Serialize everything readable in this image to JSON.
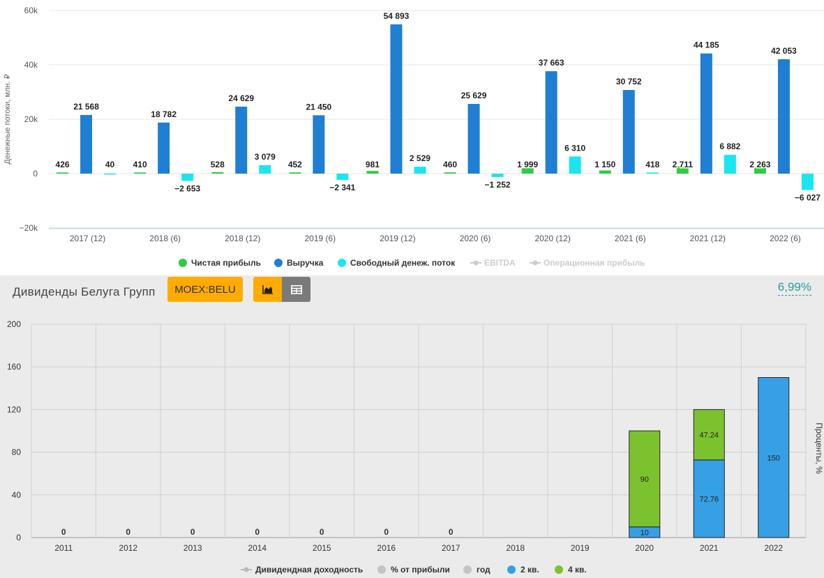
{
  "flow_panel": {
    "legend": [
      {
        "label": "Чистая прибыль",
        "color": "#2ecc40",
        "marker": "dot",
        "enabled": true
      },
      {
        "label": "Выручка",
        "color": "#1f7fd3",
        "marker": "dot",
        "enabled": true
      },
      {
        "label": "Свободный денеж. поток",
        "color": "#19e6f0",
        "marker": "dot",
        "enabled": true
      },
      {
        "label": "EBITDA",
        "color": "#cccccc",
        "marker": "line-dot",
        "enabled": false
      },
      {
        "label": "Операционная прибыль",
        "color": "#cccccc",
        "marker": "line-dot",
        "enabled": false
      }
    ]
  },
  "dividend_panel": {
    "title": "Дивиденды Белуга Групп",
    "ticker_button": "MOEX:BELU",
    "chart_view_icon": "area-chart-icon",
    "table_view_icon": "table-icon",
    "yield_link": "6,99%",
    "right_axis_label": "Проценты, %",
    "legend": [
      {
        "label": "Дивидендная доходность",
        "color": "#bbbbbb",
        "marker": "line-dot",
        "enabled": false
      },
      {
        "label": "% от прибыли",
        "color": "#c4c4c4",
        "marker": "dot",
        "enabled": false
      },
      {
        "label": "год",
        "color": "#c4c4c4",
        "marker": "dot",
        "enabled": false
      },
      {
        "label": "2 кв.",
        "color": "#36a0e6",
        "marker": "dot",
        "enabled": true
      },
      {
        "label": "4 кв.",
        "color": "#7cc22e",
        "marker": "dot",
        "enabled": true
      }
    ]
  },
  "chart_data": [
    {
      "type": "bar",
      "ylabel": "Денежные потоки, млн. ₽",
      "ylim": [
        -20000,
        60000
      ],
      "yticks": [
        -20000,
        0,
        20000,
        40000,
        60000
      ],
      "ytick_labels": [
        "−20k",
        "0",
        "20k",
        "40k",
        "60k"
      ],
      "grid": true,
      "legend_position": "bottom",
      "categories": [
        "2017 (12)",
        "2018 (6)",
        "2018 (12)",
        "2019 (6)",
        "2019 (12)",
        "2020 (6)",
        "2020 (12)",
        "2021 (6)",
        "2021 (12)",
        "2022 (6)"
      ],
      "series": [
        {
          "name": "Чистая прибыль",
          "color": "#2ecc40",
          "values": [
            426,
            410,
            528,
            452,
            981,
            460,
            1999,
            1150,
            2711,
            2263
          ],
          "labels": [
            "426",
            "410",
            "528",
            "452",
            "981",
            "460",
            "1 999",
            "1 150",
            "2 711",
            "2 263"
          ]
        },
        {
          "name": "Выручка",
          "color": "#1f7fd3",
          "values": [
            21568,
            18782,
            24629,
            21450,
            54893,
            25629,
            37663,
            30752,
            44185,
            42053
          ],
          "labels": [
            "21 568",
            "18 782",
            "24 629",
            "21 450",
            "54 893",
            "25 629",
            "37 663",
            "30 752",
            "44 185",
            "42 053"
          ]
        },
        {
          "name": "Свободный денеж. поток",
          "color": "#19e6f0",
          "values": [
            40,
            -2653,
            3079,
            -2341,
            2529,
            -1252,
            6310,
            418,
            6882,
            -6027
          ],
          "labels": [
            "40",
            "−2 653",
            "3 079",
            "−2 341",
            "2 529",
            "−1 252",
            "6 310",
            "418",
            "6 882",
            "−6 027"
          ]
        }
      ]
    },
    {
      "type": "bar",
      "stacked": true,
      "ylabel": "Проценты, %",
      "ylim": [
        0,
        200
      ],
      "yticks": [
        0,
        40,
        80,
        120,
        160,
        200
      ],
      "grid": true,
      "legend_position": "bottom",
      "categories": [
        "2011",
        "2012",
        "2013",
        "2014",
        "2015",
        "2016",
        "2017",
        "2018",
        "2019",
        "2020",
        "2021",
        "2022"
      ],
      "zero_labels": [
        "0",
        "0",
        "0",
        "0",
        "0",
        "0",
        "0",
        "",
        "",
        "",
        "",
        ""
      ],
      "series": [
        {
          "name": "2 кв.",
          "color": "#36a0e6",
          "values": [
            0,
            0,
            0,
            0,
            0,
            0,
            0,
            0,
            0,
            10,
            72.76,
            150
          ],
          "labels": [
            "",
            "",
            "",
            "",
            "",
            "",
            "",
            "",
            "",
            "10",
            "72.76",
            "150"
          ]
        },
        {
          "name": "4 кв.",
          "color": "#7cc22e",
          "values": [
            0,
            0,
            0,
            0,
            0,
            0,
            0,
            0,
            0,
            90,
            47.24,
            0
          ],
          "labels": [
            "",
            "",
            "",
            "",
            "",
            "",
            "",
            "",
            "",
            "90",
            "47.24",
            ""
          ]
        }
      ]
    }
  ]
}
